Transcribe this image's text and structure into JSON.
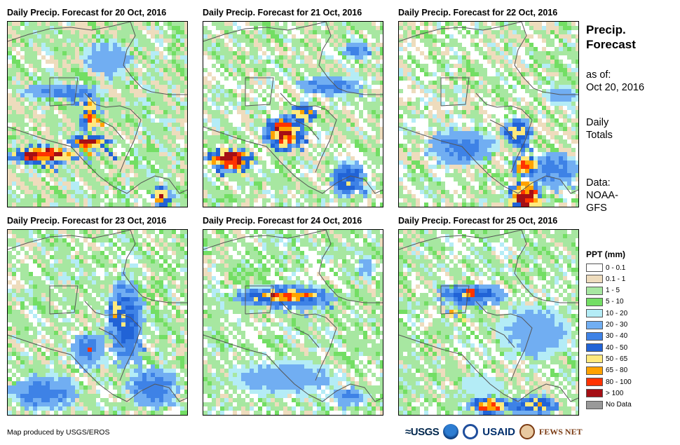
{
  "panels": [
    {
      "title": "Daily Precip. Forecast for 20 Oct, 2016"
    },
    {
      "title": "Daily Precip. Forecast for 21 Oct, 2016"
    },
    {
      "title": "Daily Precip. Forecast for 22 Oct, 2016"
    },
    {
      "title": "Daily Precip. Forecast for 23 Oct, 2016"
    },
    {
      "title": "Daily Precip. Forecast for 24 Oct, 2016"
    },
    {
      "title": "Daily Precip. Forecast for 25 Oct, 2016"
    }
  ],
  "side": {
    "title_line1": "Precip.",
    "title_line2": "Forecast",
    "asof_label": "as of:",
    "asof_date": "Oct 20, 2016",
    "totals_line1": "Daily",
    "totals_line2": "Totals",
    "data_line1": "Data:",
    "data_line2": "NOAA-",
    "data_line3": "GFS"
  },
  "legend": {
    "title": "PPT (mm)",
    "items": [
      {
        "label": "0 - 0.1",
        "color": "#ffffff"
      },
      {
        "label": "0.1 - 1",
        "color": "#eedcbd"
      },
      {
        "label": "1 - 5",
        "color": "#a7e7a1"
      },
      {
        "label": "5 - 10",
        "color": "#73de64"
      },
      {
        "label": "10 - 20",
        "color": "#b4ecf6"
      },
      {
        "label": "20 - 30",
        "color": "#71aef2"
      },
      {
        "label": "30 - 40",
        "color": "#3e82e6"
      },
      {
        "label": "40 - 50",
        "color": "#2163d6"
      },
      {
        "label": "50 - 65",
        "color": "#ffe97d"
      },
      {
        "label": "65 - 80",
        "color": "#ffa200"
      },
      {
        "label": "80 - 100",
        "color": "#ff3300"
      },
      {
        "label": "> 100",
        "color": "#a50f15"
      },
      {
        "label": "No Data",
        "color": "#999999"
      }
    ]
  },
  "footer": {
    "credit": "Map produced by USGS/EROS",
    "logo_usgs": "≈USGS",
    "logo_usaid": "USAID",
    "logo_fews": "FEWS NET"
  }
}
